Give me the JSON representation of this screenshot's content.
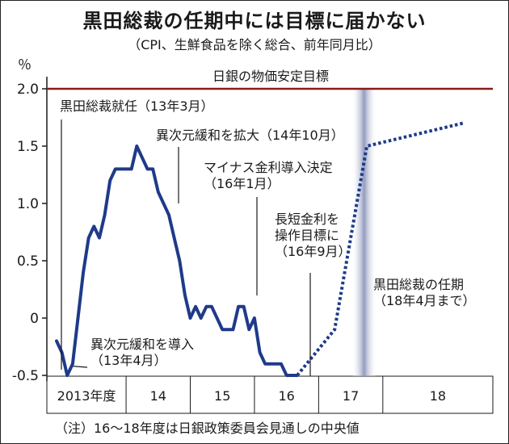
{
  "chart_data": {
    "type": "line",
    "title": "黒田総裁の任期中には目標に届かない",
    "subtitle": "（CPI、生鮮食品を除く総合、前年同月比）",
    "ylabel": "％",
    "ylim": [
      -0.5,
      2.0
    ],
    "yticks": [
      {
        "value": 2.0,
        "label": "2.0"
      },
      {
        "value": 1.5,
        "label": "1.5"
      },
      {
        "value": 1.0,
        "label": "1.0"
      },
      {
        "value": 0.5,
        "label": "0.5"
      },
      {
        "value": 0,
        "label": "0"
      },
      {
        "value": -0.5,
        "label": "-0.5"
      }
    ],
    "categories": [
      "2013年度",
      "14",
      "15",
      "16",
      "17",
      "18"
    ],
    "target": {
      "value": 2.0,
      "label": "日銀の物価安定目標",
      "color": "#8b1a1a"
    },
    "series": [
      {
        "style": "solid",
        "color": "#1f3a8a",
        "x": [
          0,
          1,
          2,
          3,
          4,
          5,
          6,
          7,
          8,
          9,
          10,
          11,
          12,
          13,
          14,
          15,
          16,
          17,
          18,
          19,
          20,
          21,
          22,
          23,
          24,
          25,
          26,
          27,
          28,
          29,
          30,
          31,
          32,
          33,
          34,
          35,
          36,
          37,
          38,
          39,
          40,
          41,
          42,
          43,
          44,
          45
        ],
        "values": [
          -0.2,
          -0.3,
          -0.5,
          -0.4,
          0.0,
          0.4,
          0.7,
          0.8,
          0.7,
          0.9,
          1.2,
          1.3,
          1.3,
          1.3,
          1.3,
          1.5,
          1.4,
          1.3,
          1.3,
          1.1,
          1.0,
          0.9,
          0.7,
          0.5,
          0.2,
          0.0,
          0.1,
          0.0,
          0.1,
          0.1,
          0.0,
          -0.1,
          -0.1,
          -0.1,
          0.1,
          0.1,
          -0.1,
          0.0,
          -0.3,
          -0.4,
          -0.4,
          -0.4,
          -0.4,
          -0.5,
          -0.5,
          -0.5
        ]
      },
      {
        "style": "dotted",
        "color": "#1f3a8a",
        "x": [
          45,
          52,
          58,
          76
        ],
        "values": [
          -0.5,
          -0.1,
          1.5,
          1.7
        ]
      }
    ],
    "shaded_band": {
      "x": 57.5,
      "color": "#9aa3c4"
    },
    "annotations": [
      {
        "id": "kuroda-start",
        "lines": [
          "黒田総裁就任（13年3月）"
        ],
        "x": 0
      },
      {
        "id": "qqe-start",
        "lines": [
          "異次元緩和を導入",
          "（13年4月）"
        ],
        "x": 1
      },
      {
        "id": "qqe-expand",
        "lines": [
          "異次元緩和を拡大（14年10月）"
        ],
        "x": 18
      },
      {
        "id": "negative-rate",
        "lines": [
          "マイナス金利導入決定",
          "（16年1月）"
        ],
        "x": 34
      },
      {
        "id": "yield-curve",
        "lines": [
          "長短金利を",
          "操作目標に",
          "（16年9月）"
        ],
        "x": 42
      },
      {
        "id": "term-end",
        "lines": [
          "黒田総裁の任期",
          "（18年4月まで）"
        ],
        "x": 61
      }
    ],
    "footnote": "（注）16～18年度は日銀政策委員会見通しの中央値"
  }
}
